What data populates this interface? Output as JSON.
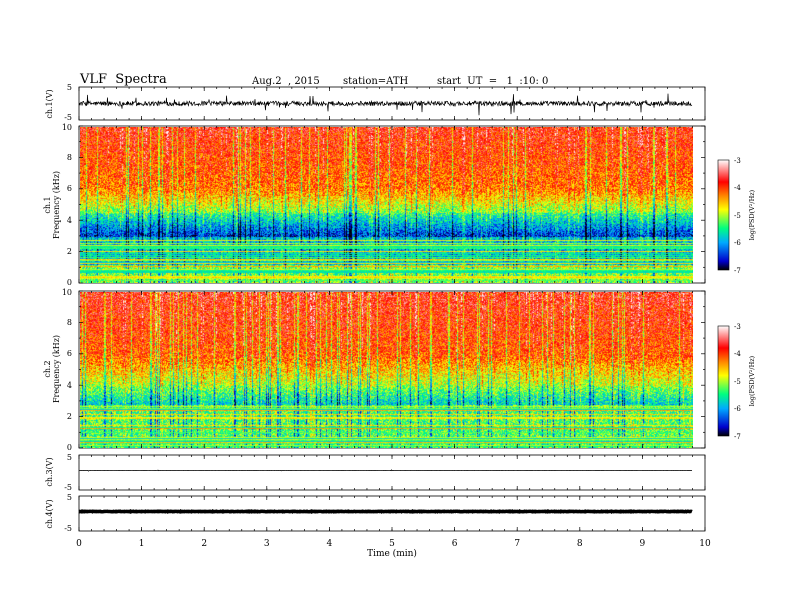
{
  "header": {
    "title": "VLF  Spectra",
    "date": "Aug.2  , 2015",
    "station": "station=ATH",
    "start": "start  UT  =   1  :10: 0"
  },
  "chart_data": {
    "type": "heatmap",
    "xlabel": "Time  (min)",
    "xlim": [
      0,
      10
    ],
    "x_ticks": [
      "0",
      "1",
      "2",
      "3",
      "4",
      "5",
      "6",
      "7",
      "8",
      "9",
      "10"
    ],
    "data_end_min": 9.8,
    "panels": [
      {
        "id": "ch1-waveform",
        "type": "line",
        "ylabel": "ch.1(V)",
        "ylim": [
          -5,
          5
        ],
        "y_ticks": [
          "5",
          "-5"
        ],
        "amplitude_note": "noisy, about +/-1 V with spikes to ~+/-3 V"
      },
      {
        "id": "ch1-spectrogram",
        "type": "heatmap",
        "ylabel_lines": [
          "ch.1",
          "Frequency  (kHz)"
        ],
        "ylim": [
          0,
          10
        ],
        "y_ticks": [
          "0",
          "2",
          "4",
          "6",
          "8",
          "10"
        ]
      },
      {
        "id": "ch2-spectrogram",
        "type": "heatmap",
        "ylabel_lines": [
          "ch.2",
          "Frequency  (kHz)"
        ],
        "ylim": [
          0,
          10
        ],
        "y_ticks": [
          "0",
          "2",
          "4",
          "6",
          "8",
          "10"
        ]
      },
      {
        "id": "ch3-waveform",
        "type": "line",
        "ylabel": "ch.3(V)",
        "ylim": [
          -5,
          5
        ],
        "y_ticks": [
          "5",
          "-5"
        ],
        "level": 0
      },
      {
        "id": "ch4-waveform",
        "type": "line",
        "ylabel": "ch.4(V)",
        "ylim": [
          -5,
          5
        ],
        "y_ticks": [
          "5",
          "-5"
        ],
        "level": 0
      }
    ],
    "colorbar": {
      "label": "log(PSD(V²/Hz)",
      "range": [
        -7,
        -3
      ],
      "ticks": [
        "-3",
        "-4",
        "-5",
        "-6",
        "-7"
      ],
      "colormap": [
        "#000000",
        "#0000cc",
        "#00aaff",
        "#00ff80",
        "#ffff00",
        "#ff8000",
        "#ff0000",
        "#ff9999",
        "#ffffff"
      ]
    }
  }
}
